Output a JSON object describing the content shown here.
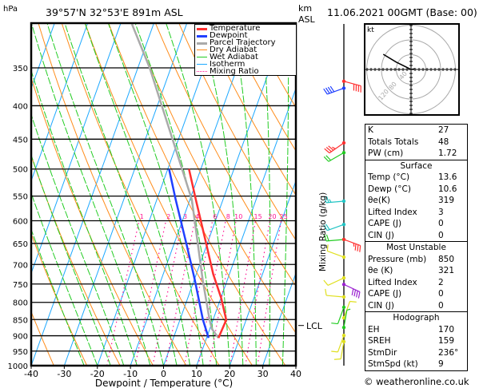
{
  "header": {
    "unit_pressure": "hPa",
    "location": "39°57'N 32°53'E 891m ASL",
    "km_label": "km",
    "asl_label": "ASL",
    "datetime": "11.06.2021 00GMT (Base: 00)"
  },
  "legend": [
    {
      "label": "Temperature",
      "color": "#ff3030",
      "style": "thick"
    },
    {
      "label": "Dewpoint",
      "color": "#2040ff",
      "style": "thick"
    },
    {
      "label": "Parcel Trajectory",
      "color": "#aaaaaa",
      "style": "thick"
    },
    {
      "label": "Dry Adiabat",
      "color": "#ff8c1a",
      "style": "solid"
    },
    {
      "label": "Wet Adiabat",
      "color": "#22cc22",
      "style": "solid"
    },
    {
      "label": "Isotherm",
      "color": "#1ca8ff",
      "style": "solid"
    },
    {
      "label": "Mixing Ratio",
      "color": "#ff1493",
      "style": "dotted"
    }
  ],
  "mixing_ratio_label": "Mixing Ratio (g/kg)",
  "lcl_label": "LCL",
  "chart_data": {
    "type": "line",
    "title": "39°57'N 32°53'E 891m ASL",
    "xlabel": "Dewpoint / Temperature (°C)",
    "ylabel": "hPa",
    "xlim": [
      -40,
      40
    ],
    "ylim": [
      1000,
      300
    ],
    "x_ticks": [
      "-40",
      "-30",
      "-20",
      "-10",
      "0",
      "10",
      "20",
      "30",
      "40"
    ],
    "pressure_ticks": [
      "350",
      "400",
      "450",
      "500",
      "550",
      "600",
      "650",
      "700",
      "750",
      "800",
      "850",
      "900",
      "950",
      "1000"
    ],
    "mixing_ratio_ticks": [
      "1",
      "2",
      "3",
      "4",
      "6",
      "8",
      "10",
      "15",
      "20",
      "25"
    ],
    "lcl_pressure": 868,
    "series": [
      {
        "name": "Temperature",
        "color": "#ff3030",
        "points": [
          [
            907,
            13.6
          ],
          [
            851,
            14.0
          ],
          [
            788,
            10.1
          ],
          [
            724,
            5.1
          ],
          [
            653,
            -0.1
          ],
          [
            557,
            -8.2
          ],
          [
            500,
            -13.6
          ]
        ]
      },
      {
        "name": "Dewpoint",
        "color": "#2040ff",
        "points": [
          [
            907,
            10.6
          ],
          [
            850,
            6.9
          ],
          [
            738,
            0.1
          ],
          [
            653,
            -6.1
          ],
          [
            557,
            -14.3
          ],
          [
            500,
            -19.6
          ]
        ]
      },
      {
        "name": "Parcel Trajectory",
        "color": "#aaaaaa",
        "points": [
          [
            907,
            13.6
          ],
          [
            878,
            10.6
          ],
          [
            850,
            8.9
          ],
          [
            738,
            2.5
          ],
          [
            557,
            -9.4
          ],
          [
            350,
            -36.4
          ],
          [
            300,
            -46.5
          ]
        ]
      }
    ],
    "winds": [
      {
        "p": 367,
        "dir": 105,
        "spd": 40,
        "color": "#ff3030"
      },
      {
        "p": 376,
        "dir": 250,
        "spd": 40,
        "color": "#2040ff"
      },
      {
        "p": 456,
        "dir": 235,
        "spd": 35,
        "color": "#ff3030"
      },
      {
        "p": 472,
        "dir": 240,
        "spd": 20,
        "color": "#22cc22"
      },
      {
        "p": 560,
        "dir": 265,
        "spd": 25,
        "color": "#22c4c4"
      },
      {
        "p": 608,
        "dir": 250,
        "spd": 20,
        "color": "#22c4c4"
      },
      {
        "p": 641,
        "dir": 265,
        "spd": 20,
        "color": "#22cc22"
      },
      {
        "p": 641,
        "dir": 110,
        "spd": 35,
        "color": "#ff3030"
      },
      {
        "p": 682,
        "dir": 290,
        "spd": 10,
        "color": "#e0e020"
      },
      {
        "p": 734,
        "dir": 245,
        "spd": 10,
        "color": "#e0e020"
      },
      {
        "p": 751,
        "dir": 115,
        "spd": 40,
        "color": "#9a20d0"
      },
      {
        "p": 785,
        "dir": 275,
        "spd": 10,
        "color": "#e0e020"
      },
      {
        "p": 814,
        "dir": 200,
        "spd": 10,
        "color": "#22cc22"
      },
      {
        "p": 845,
        "dir": 20,
        "spd": 10,
        "color": "#e0e020"
      },
      {
        "p": 874,
        "dir": 10,
        "spd": 5,
        "color": "#22cc22"
      },
      {
        "p": 899,
        "dir": 200,
        "spd": 10,
        "color": "#e0e020"
      },
      {
        "p": 919,
        "dir": 190,
        "spd": 10,
        "color": "#e0e020"
      }
    ],
    "hodograph": {
      "unit": "kt",
      "rings": [
        "40",
        "80",
        "120"
      ],
      "points": [
        [
          4,
          -1
        ],
        [
          6,
          1
        ],
        [
          0,
          0
        ],
        [
          -10,
          5
        ],
        [
          -40,
          20
        ],
        [
          -75,
          41
        ]
      ]
    }
  },
  "stats": {
    "general": [
      {
        "label": "K",
        "value": "27"
      },
      {
        "label": "Totals Totals",
        "value": "48"
      },
      {
        "label": "PW (cm)",
        "value": "1.72"
      }
    ],
    "surface": {
      "title": "Surface",
      "rows": [
        {
          "label": "Temp (°C)",
          "value": "13.6"
        },
        {
          "label": "Dewp (°C)",
          "value": "10.6"
        },
        {
          "label": "θe(K)",
          "value": "319"
        },
        {
          "label": "Lifted Index",
          "value": "3"
        },
        {
          "label": "CAPE (J)",
          "value": "0"
        },
        {
          "label": "CIN (J)",
          "value": "0"
        }
      ]
    },
    "most_unstable": {
      "title": "Most Unstable",
      "rows": [
        {
          "label": "Pressure (mb)",
          "value": "850"
        },
        {
          "label": "θe (K)",
          "value": "321"
        },
        {
          "label": "Lifted Index",
          "value": "2"
        },
        {
          "label": "CAPE (J)",
          "value": "0"
        },
        {
          "label": "CIN (J)",
          "value": "0"
        }
      ]
    },
    "hodograph": {
      "title": "Hodograph",
      "rows": [
        {
          "label": "EH",
          "value": "170"
        },
        {
          "label": "SREH",
          "value": "159"
        },
        {
          "label": "StmDir",
          "value": "236°"
        },
        {
          "label": "StmSpd (kt)",
          "value": "9"
        }
      ]
    }
  },
  "footer": {
    "copyright": "© weatheronline.co.uk"
  }
}
